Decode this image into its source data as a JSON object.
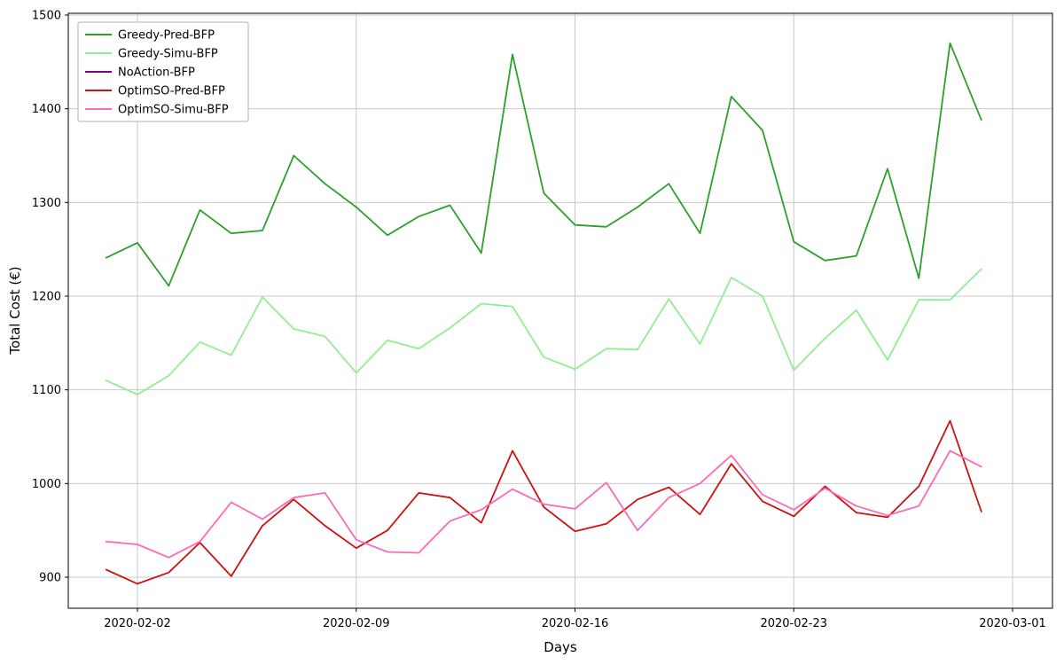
{
  "chart_data": {
    "type": "line",
    "title": "",
    "xlabel": "Days",
    "ylabel": "Total Cost (€)",
    "grid": true,
    "legend_position": "upper-left",
    "ylim": [
      867,
      1502
    ],
    "y_ticks": [
      900,
      1000,
      1100,
      1200,
      1300,
      1400,
      1500
    ],
    "x_ticks": [
      {
        "label": "2020-02-02",
        "index": 1
      },
      {
        "label": "2020-02-09",
        "index": 8
      },
      {
        "label": "2020-02-16",
        "index": 15
      },
      {
        "label": "2020-02-23",
        "index": 22
      },
      {
        "label": "2020-03-01",
        "index": 29
      }
    ],
    "dates": [
      "2020-02-01",
      "2020-02-02",
      "2020-02-03",
      "2020-02-04",
      "2020-02-05",
      "2020-02-06",
      "2020-02-07",
      "2020-02-08",
      "2020-02-09",
      "2020-02-10",
      "2020-02-11",
      "2020-02-12",
      "2020-02-13",
      "2020-02-14",
      "2020-02-15",
      "2020-02-16",
      "2020-02-17",
      "2020-02-18",
      "2020-02-19",
      "2020-02-20",
      "2020-02-21",
      "2020-02-22",
      "2020-02-23",
      "2020-02-24",
      "2020-02-25",
      "2020-02-26",
      "2020-02-27",
      "2020-02-28",
      "2020-02-29"
    ],
    "series": [
      {
        "name": "Greedy-Pred-BFP",
        "color": "#2ca02c",
        "values": [
          1241,
          1257,
          1211,
          1292,
          1267,
          1270,
          1350,
          1320,
          1295,
          1265,
          1285,
          1297,
          1246,
          1458,
          1310,
          1276,
          1274,
          1295,
          1320,
          1267,
          1413,
          1377,
          1258,
          1238,
          1243,
          1336,
          1219,
          1470,
          1388
        ]
      },
      {
        "name": "Greedy-Simu-BFP",
        "color": "#90ee90",
        "values": [
          1110,
          1095,
          1115,
          1151,
          1137,
          1199,
          1165,
          1157,
          1118,
          1153,
          1144,
          1166,
          1192,
          1189,
          1135,
          1122,
          1144,
          1143,
          1197,
          1149,
          1220,
          1200,
          1121,
          1155,
          1185,
          1132,
          1196,
          1196,
          1229
        ]
      },
      {
        "name": "NoAction-BFP",
        "color": "#800080",
        "values": []
      },
      {
        "name": "OptimSO-Pred-BFP",
        "color": "#cc1111",
        "values": [
          908,
          893,
          905,
          937,
          901,
          955,
          983,
          955,
          931,
          950,
          990,
          985,
          958,
          1035,
          975,
          949,
          957,
          983,
          996,
          967,
          1021,
          981,
          965,
          997,
          969,
          964,
          997,
          1067,
          970
        ]
      },
      {
        "name": "OptimSO-Simu-BFP",
        "color": "#ff69b4",
        "values": [
          938,
          935,
          921,
          938,
          980,
          962,
          985,
          990,
          940,
          927,
          926,
          960,
          972,
          994,
          978,
          973,
          1001,
          950,
          985,
          1000,
          1030,
          988,
          972,
          995,
          976,
          966,
          976,
          1035,
          1018
        ]
      }
    ]
  }
}
